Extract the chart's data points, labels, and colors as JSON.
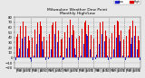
{
  "title": "Milwaukee Weather Dew Point",
  "subtitle": "Monthly High/Low",
  "legend_high": "High",
  "legend_low": "Low",
  "high_color": "#dd0000",
  "low_color": "#2222cc",
  "background_color": "#e8e8e8",
  "plot_bg": "#e8e8e8",
  "ylim": [
    -20,
    80
  ],
  "yticks": [
    -20,
    -10,
    0,
    10,
    20,
    30,
    40,
    50,
    60,
    70,
    80
  ],
  "year_separators": [
    11.5,
    23.5,
    35.5,
    47.5,
    59.5,
    71.5,
    83.5
  ],
  "bar_width": 0.38,
  "highs": [
    38,
    41,
    46,
    55,
    62,
    68,
    72,
    70,
    62,
    52,
    43,
    35,
    36,
    40,
    47,
    55,
    63,
    70,
    73,
    71,
    63,
    53,
    42,
    33,
    35,
    42,
    47,
    57,
    65,
    70,
    74,
    72,
    63,
    54,
    44,
    36,
    38,
    44,
    50,
    58,
    64,
    71,
    75,
    73,
    65,
    54,
    45,
    37,
    40,
    43,
    48,
    57,
    63,
    69,
    73,
    71,
    64,
    53,
    44,
    36,
    38,
    42,
    47,
    56,
    64,
    70,
    74,
    72,
    65,
    54,
    43,
    35,
    37,
    41,
    49,
    57,
    64,
    71,
    74,
    72,
    63,
    53,
    44,
    36,
    38,
    43,
    47,
    56,
    63,
    70,
    73,
    71,
    63,
    52,
    43,
    35
  ],
  "lows": [
    -5,
    -2,
    5,
    18,
    28,
    38,
    45,
    42,
    30,
    18,
    5,
    -3,
    -8,
    -4,
    4,
    15,
    27,
    40,
    47,
    44,
    32,
    16,
    4,
    -5,
    -6,
    -3,
    6,
    17,
    29,
    39,
    46,
    43,
    31,
    17,
    5,
    -4,
    -5,
    -2,
    7,
    18,
    28,
    40,
    46,
    44,
    32,
    18,
    6,
    -3,
    -4,
    -3,
    5,
    17,
    28,
    39,
    46,
    43,
    31,
    17,
    5,
    -4,
    -6,
    -3,
    6,
    16,
    28,
    39,
    46,
    44,
    32,
    17,
    5,
    -4,
    -5,
    -2,
    6,
    17,
    28,
    40,
    46,
    44,
    32,
    17,
    5,
    -5,
    -4,
    -2,
    5,
    17,
    27,
    39,
    45,
    43,
    31,
    16,
    4,
    -5
  ],
  "xtick_labels": [
    "J",
    "F",
    "M",
    "A",
    "M",
    "J",
    "J",
    "A",
    "S",
    "O",
    "N",
    "D",
    "J",
    "F",
    "M",
    "A",
    "M",
    "J",
    "J",
    "A",
    "S",
    "O",
    "N",
    "D",
    "J",
    "F",
    "M",
    "A",
    "M",
    "J",
    "J",
    "A",
    "S",
    "O",
    "N",
    "D",
    "J",
    "F",
    "M",
    "A",
    "M",
    "J",
    "J",
    "A",
    "S",
    "O",
    "N",
    "D",
    "J",
    "F",
    "M",
    "A",
    "M",
    "J",
    "J",
    "A",
    "S",
    "O",
    "N",
    "D",
    "J",
    "F",
    "M",
    "A",
    "M",
    "J",
    "J",
    "A",
    "S",
    "O",
    "N",
    "D",
    "J",
    "F",
    "M",
    "A",
    "M",
    "J",
    "J",
    "A",
    "S",
    "O",
    "N",
    "D",
    "J",
    "F",
    "M",
    "A",
    "M",
    "J",
    "J",
    "A",
    "S",
    "O",
    "N",
    "D"
  ]
}
